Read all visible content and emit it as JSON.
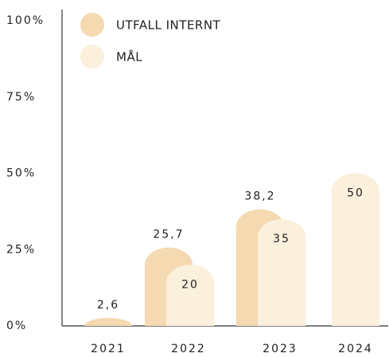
{
  "chart_data": {
    "type": "bar",
    "categories": [
      "2021",
      "2022",
      "2023",
      "2024"
    ],
    "series": [
      {
        "name": "UTFALL INTERNT",
        "color": "#f5d9b0",
        "values": [
          2.6,
          25.7,
          38.2,
          null
        ],
        "value_labels": [
          "2,6",
          "25,7",
          "38,2",
          null
        ]
      },
      {
        "name": "MÅL",
        "color": "#faf0dc",
        "values": [
          null,
          20,
          35,
          50
        ],
        "value_labels": [
          null,
          "20",
          "35",
          "50"
        ]
      }
    ],
    "ylim": [
      0,
      100
    ],
    "yticks": [
      {
        "value": 0,
        "label": "0%"
      },
      {
        "value": 25,
        "label": "25%"
      },
      {
        "value": 50,
        "label": "50%"
      },
      {
        "value": 75,
        "label": "75%"
      },
      {
        "value": 100,
        "label": "100%"
      }
    ],
    "legend": "top-left"
  }
}
